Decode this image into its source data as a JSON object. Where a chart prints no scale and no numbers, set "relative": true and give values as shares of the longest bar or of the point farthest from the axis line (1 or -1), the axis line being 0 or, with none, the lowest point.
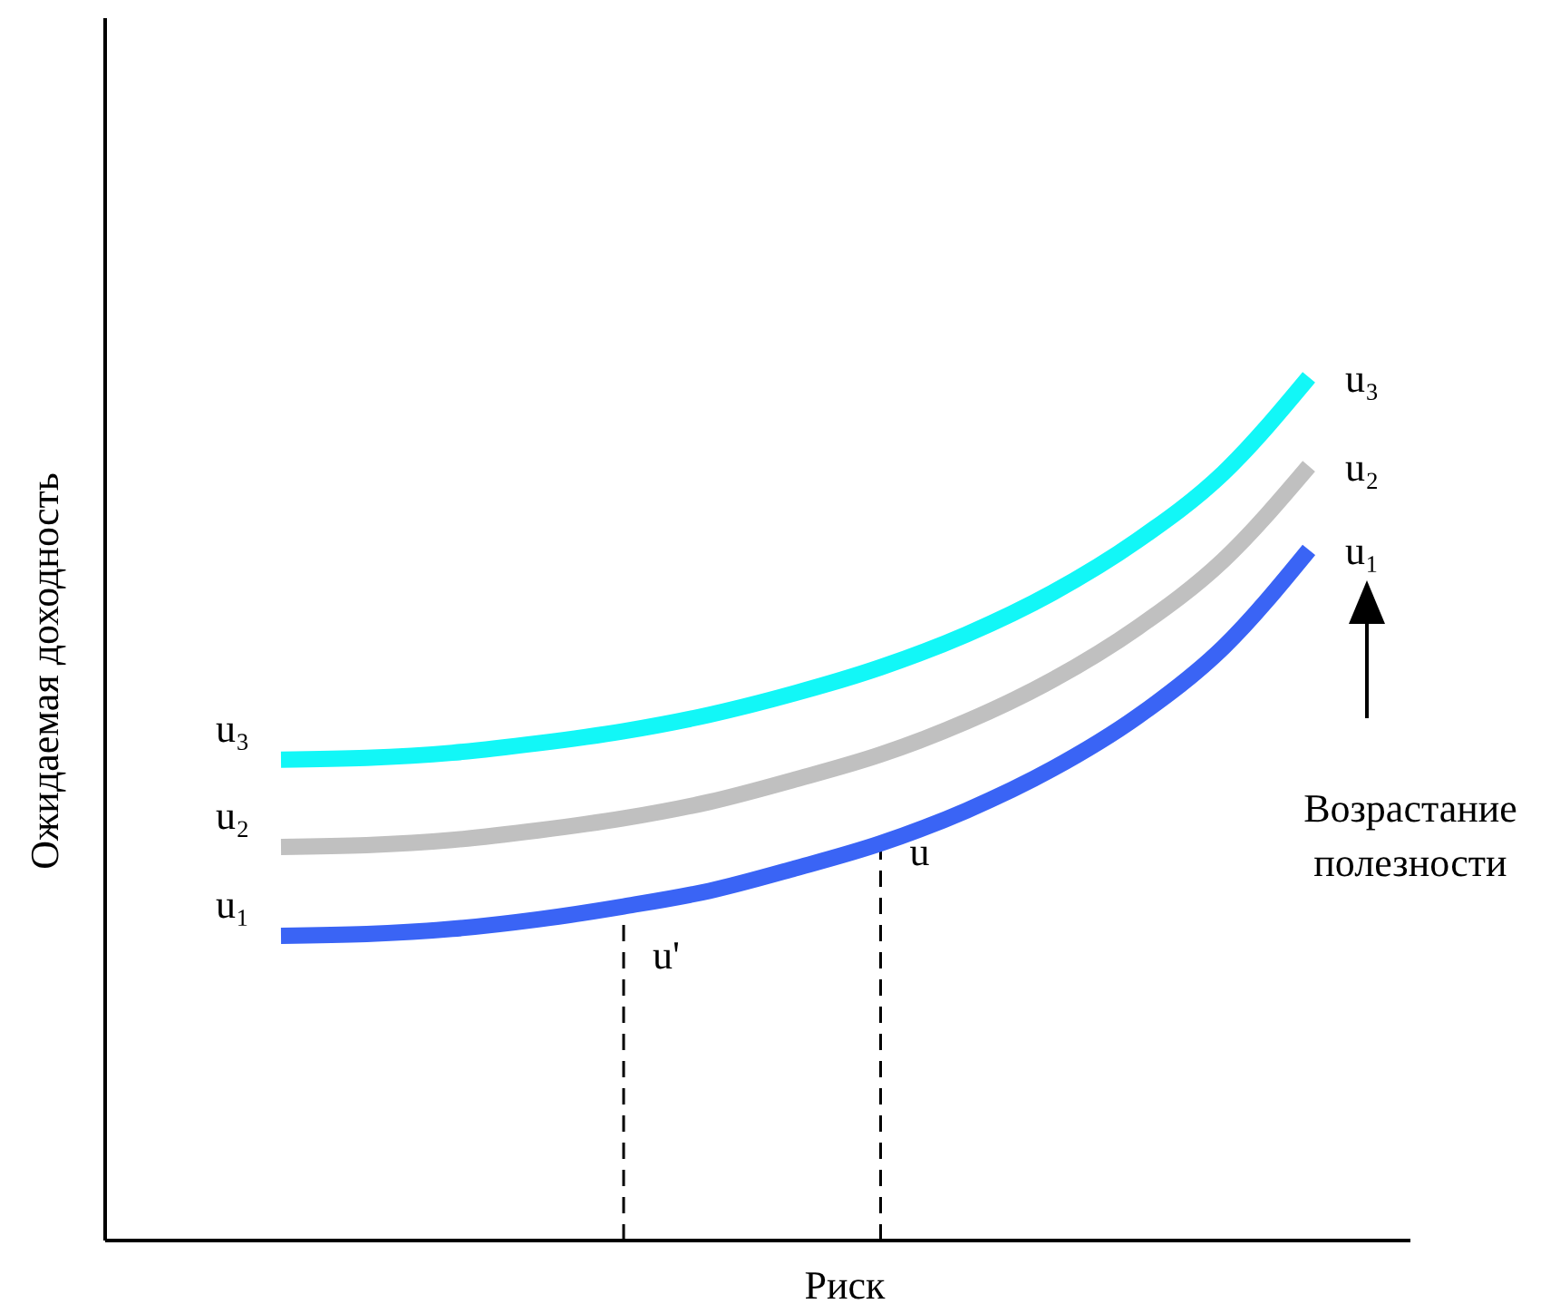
{
  "chart_data": {
    "type": "line",
    "relative": true,
    "xlabel": "Риск",
    "ylabel": "Ожидаемая доходность",
    "categories": [
      null,
      null,
      null,
      null,
      null,
      null,
      null,
      null,
      null,
      null,
      null,
      null,
      null
    ],
    "series": [
      {
        "name": "u₁",
        "color": "#3a64f5",
        "values": [
          0.353,
          0.355,
          0.361,
          0.372,
          0.387,
          0.405,
          0.431,
          0.46,
          0.498,
          0.546,
          0.607,
          0.687,
          0.8
        ]
      },
      {
        "name": "u₂",
        "color": "#c0c0c0",
        "values": [
          0.456,
          0.458,
          0.464,
          0.475,
          0.489,
          0.508,
          0.534,
          0.563,
          0.601,
          0.649,
          0.71,
          0.788,
          0.897
        ]
      },
      {
        "name": "u₃",
        "color": "#12f7f7",
        "values": [
          0.557,
          0.559,
          0.565,
          0.576,
          0.59,
          0.609,
          0.634,
          0.664,
          0.702,
          0.75,
          0.811,
          0.889,
          1.0
        ]
      }
    ],
    "annotations": [
      "u'",
      "u",
      "Возрастание полезности"
    ]
  }
}
